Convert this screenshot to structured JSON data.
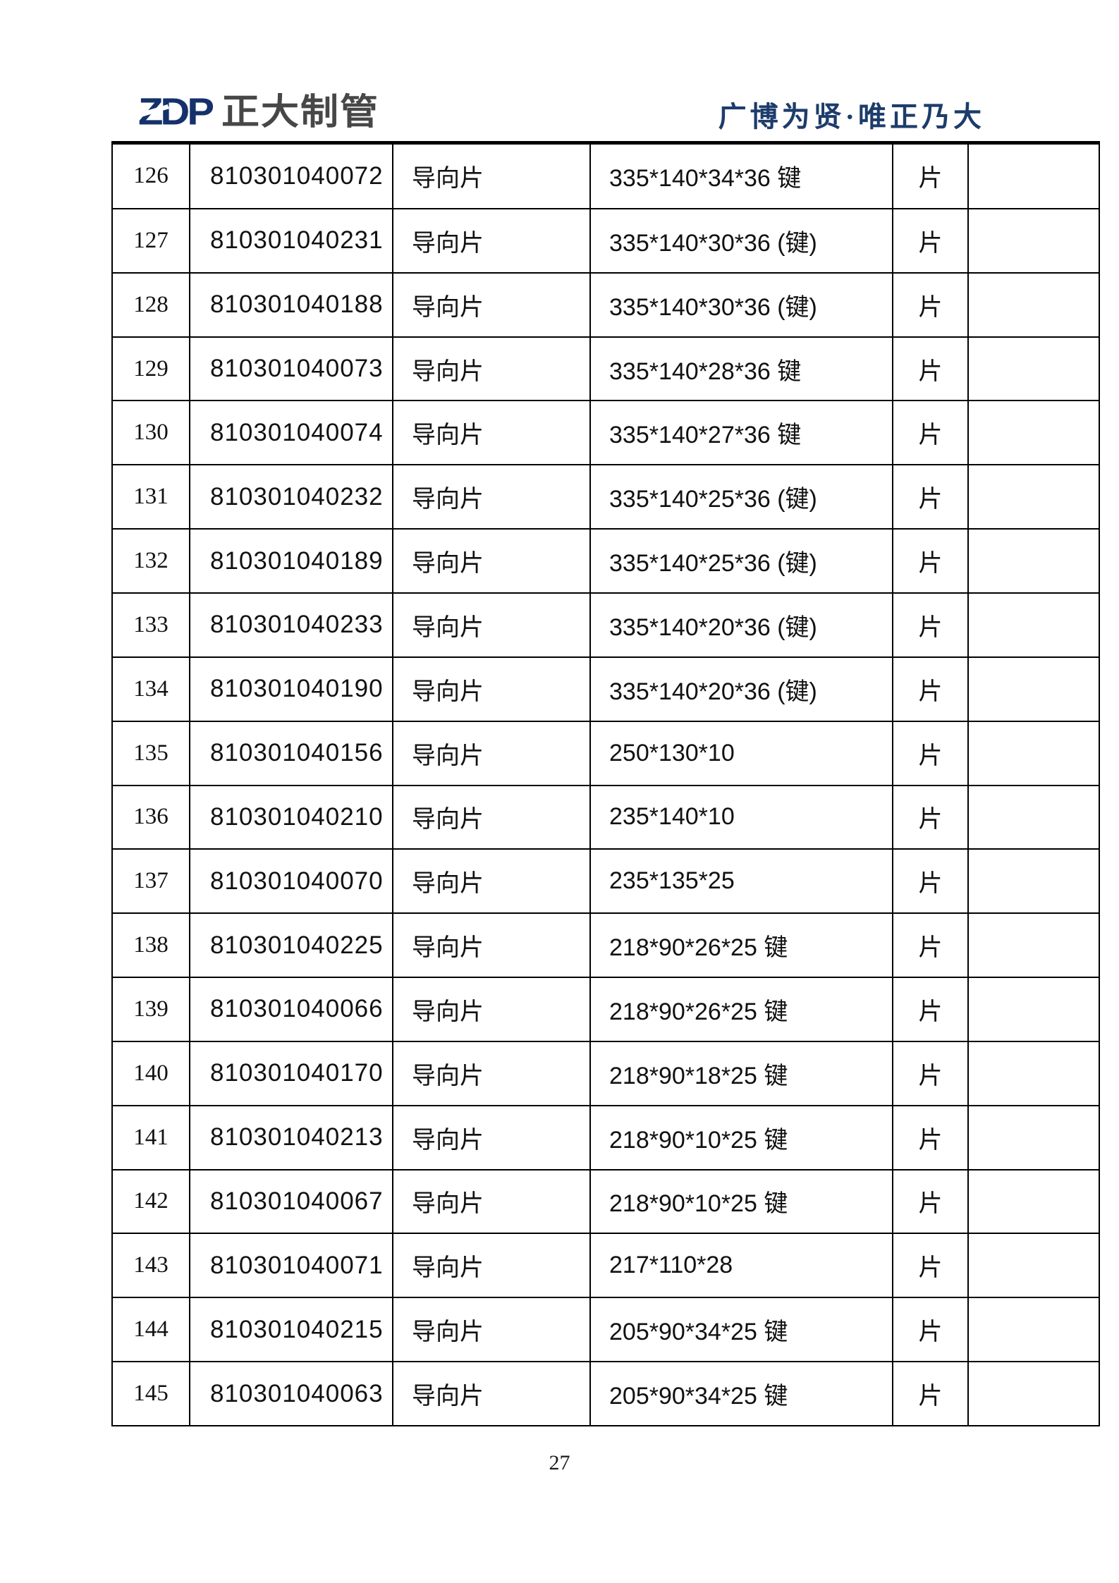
{
  "header": {
    "logo_mark": "ZDP",
    "logo_text": "正大制管",
    "slogan": "广博为贤·唯正乃大"
  },
  "colors": {
    "logo_navy": "#15316b",
    "logo_gray": "#474747",
    "slogan_navy": "#1d3c6b",
    "table_border": "#000000"
  },
  "table": {
    "columns": [
      "no",
      "code",
      "name",
      "spec",
      "unit",
      "note"
    ],
    "rows": [
      {
        "no": "126",
        "code": "810301040072",
        "name": "导向片",
        "spec": "335*140*34*36 键",
        "unit": "片",
        "note": ""
      },
      {
        "no": "127",
        "code": "810301040231",
        "name": "导向片",
        "spec": "335*140*30*36 (键)",
        "unit": "片",
        "note": ""
      },
      {
        "no": "128",
        "code": "810301040188",
        "name": "导向片",
        "spec": "335*140*30*36 (键)",
        "unit": "片",
        "note": ""
      },
      {
        "no": "129",
        "code": "810301040073",
        "name": "导向片",
        "spec": "335*140*28*36 键",
        "unit": "片",
        "note": ""
      },
      {
        "no": "130",
        "code": "810301040074",
        "name": "导向片",
        "spec": "335*140*27*36 键",
        "unit": "片",
        "note": ""
      },
      {
        "no": "131",
        "code": "810301040232",
        "name": "导向片",
        "spec": "335*140*25*36 (键)",
        "unit": "片",
        "note": ""
      },
      {
        "no": "132",
        "code": "810301040189",
        "name": "导向片",
        "spec": "335*140*25*36 (键)",
        "unit": "片",
        "note": ""
      },
      {
        "no": "133",
        "code": "810301040233",
        "name": "导向片",
        "spec": "335*140*20*36 (键)",
        "unit": "片",
        "note": ""
      },
      {
        "no": "134",
        "code": "810301040190",
        "name": "导向片",
        "spec": "335*140*20*36 (键)",
        "unit": "片",
        "note": ""
      },
      {
        "no": "135",
        "code": "810301040156",
        "name": "导向片",
        "spec": "250*130*10",
        "unit": "片",
        "note": ""
      },
      {
        "no": "136",
        "code": "810301040210",
        "name": "导向片",
        "spec": "235*140*10",
        "unit": "片",
        "note": ""
      },
      {
        "no": "137",
        "code": "810301040070",
        "name": "导向片",
        "spec": "235*135*25",
        "unit": "片",
        "note": ""
      },
      {
        "no": "138",
        "code": "810301040225",
        "name": "导向片",
        "spec": "218*90*26*25 键",
        "unit": "片",
        "note": ""
      },
      {
        "no": "139",
        "code": "810301040066",
        "name": "导向片",
        "spec": "218*90*26*25 键",
        "unit": "片",
        "note": ""
      },
      {
        "no": "140",
        "code": "810301040170",
        "name": "导向片",
        "spec": "218*90*18*25 键",
        "unit": "片",
        "note": ""
      },
      {
        "no": "141",
        "code": "810301040213",
        "name": "导向片",
        "spec": "218*90*10*25 键",
        "unit": "片",
        "note": ""
      },
      {
        "no": "142",
        "code": "810301040067",
        "name": "导向片",
        "spec": "218*90*10*25 键",
        "unit": "片",
        "note": ""
      },
      {
        "no": "143",
        "code": "810301040071",
        "name": "导向片",
        "spec": "217*110*28",
        "unit": "片",
        "note": ""
      },
      {
        "no": "144",
        "code": "810301040215",
        "name": "导向片",
        "spec": "205*90*34*25 键",
        "unit": "片",
        "note": ""
      },
      {
        "no": "145",
        "code": "810301040063",
        "name": "导向片",
        "spec": "205*90*34*25 键",
        "unit": "片",
        "note": ""
      }
    ]
  },
  "footer": {
    "page_number": "27"
  }
}
